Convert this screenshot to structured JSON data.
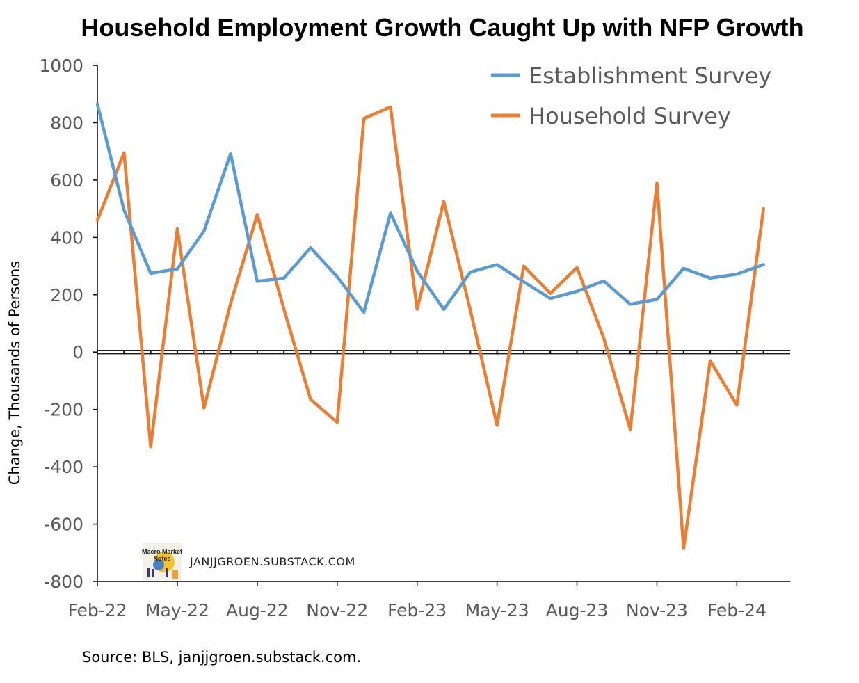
{
  "chart_data": {
    "type": "line",
    "title": "Household Employment Growth Caught Up with NFP Growth",
    "ylabel": "Change, Thousands of Persons",
    "xlabel": "",
    "ylim": [
      -800,
      1000
    ],
    "yticks": [
      1000,
      800,
      600,
      400,
      200,
      0,
      -200,
      -400,
      -600,
      -800
    ],
    "x": [
      "Feb-22",
      "Mar-22",
      "Apr-22",
      "May-22",
      "Jun-22",
      "Jul-22",
      "Aug-22",
      "Sep-22",
      "Oct-22",
      "Nov-22",
      "Dec-22",
      "Jan-23",
      "Feb-23",
      "Mar-23",
      "Apr-23",
      "May-23",
      "Jun-23",
      "Jul-23",
      "Aug-23",
      "Sep-23",
      "Oct-23",
      "Nov-23",
      "Dec-23",
      "Jan-24",
      "Feb-24",
      "Mar-24"
    ],
    "xtick_labels": [
      "Feb-22",
      "May-22",
      "Aug-22",
      "Nov-22",
      "Feb-23",
      "May-23",
      "Aug-23",
      "Nov-23",
      "Feb-24"
    ],
    "legend_position": "top-right",
    "grid": false,
    "series": [
      {
        "name": "Establishment Survey",
        "color": "#5B9BD5",
        "values": [
          865,
          495,
          275,
          290,
          422,
          692,
          247,
          258,
          364,
          263,
          139,
          485,
          283,
          149,
          279,
          305,
          245,
          187,
          212,
          248,
          167,
          184,
          292,
          258,
          272,
          305
        ]
      },
      {
        "name": "Household Survey",
        "color": "#ED7D31",
        "values": [
          460,
          695,
          -330,
          430,
          -195,
          170,
          480,
          150,
          -165,
          -245,
          815,
          855,
          150,
          525,
          145,
          -255,
          300,
          205,
          295,
          50,
          -270,
          590,
          -685,
          -30,
          -185,
          500
        ]
      }
    ]
  },
  "watermark": {
    "logo_text_1": "Macro Market",
    "logo_text_2": "Notes",
    "text": "JANJJGROEN.SUBSTACK.COM"
  },
  "source": "Source: BLS, janjjgroen.substack.com."
}
